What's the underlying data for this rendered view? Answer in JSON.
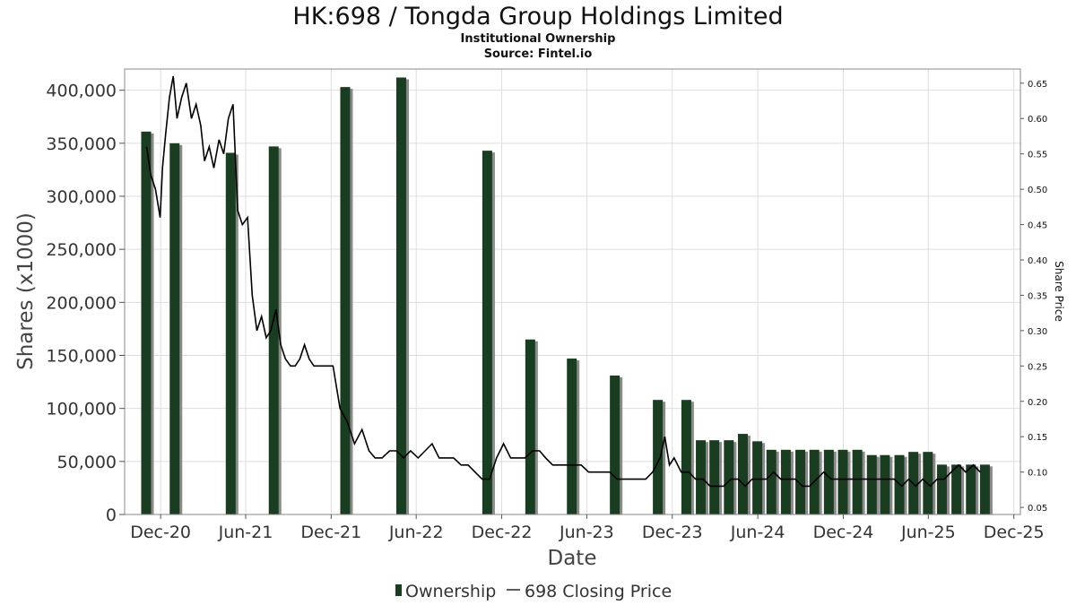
{
  "chart_data": {
    "type": "bar+line",
    "title": "HK:698 / Tongda Group Holdings Limited",
    "subtitle": "Institutional Ownership",
    "source": "Source: Fintel.io",
    "xlabel": "Date",
    "ylabel": "Shares (x1000)",
    "y2label": "Share Price",
    "ylim": [
      0,
      420000
    ],
    "y2lim": [
      0.04,
      0.67
    ],
    "yticks": [
      0,
      50000,
      100000,
      150000,
      200000,
      250000,
      300000,
      350000,
      400000
    ],
    "ytick_labels": [
      "0",
      "50,000",
      "100,000",
      "150,000",
      "200,000",
      "250,000",
      "300,000",
      "350,000",
      "400,000"
    ],
    "y2ticks": [
      0.05,
      0.1,
      0.15,
      0.2,
      0.25,
      0.3,
      0.35,
      0.4,
      0.45,
      0.5,
      0.55,
      0.6,
      0.65
    ],
    "y2tick_labels": [
      "0.05",
      "0.10",
      "0.15",
      "0.20",
      "0.25",
      "0.30",
      "0.35",
      "0.40",
      "0.45",
      "0.50",
      "0.55",
      "0.60",
      "0.65"
    ],
    "xlim": [
      "2020-09-15",
      "2025-12-15"
    ],
    "xticks": [
      "2020-12-01",
      "2021-06-01",
      "2021-12-01",
      "2022-06-01",
      "2022-12-01",
      "2023-06-01",
      "2023-12-01",
      "2024-06-01",
      "2024-12-01",
      "2025-06-01",
      "2025-12-01"
    ],
    "xtick_labels": [
      "Dec-20",
      "Jun-21",
      "Dec-21",
      "Jun-22",
      "Dec-22",
      "Jun-23",
      "Dec-23",
      "Jun-24",
      "Dec-24",
      "Jun-25",
      "Dec-25"
    ],
    "grid": true,
    "legend": "bottom-center",
    "series": [
      {
        "name": "Ownership",
        "type": "bar",
        "color": "#1a3d22",
        "x": [
          "2020-10-31",
          "2020-12-31",
          "2021-04-30",
          "2021-07-31",
          "2021-12-31",
          "2022-04-30",
          "2022-10-31",
          "2023-01-31",
          "2023-04-30",
          "2023-07-31",
          "2023-10-31",
          "2023-12-31",
          "2024-01-31",
          "2024-02-29",
          "2024-03-31",
          "2024-04-30",
          "2024-05-31",
          "2024-06-30",
          "2024-07-31",
          "2024-08-31",
          "2024-09-30",
          "2024-10-31",
          "2024-11-30",
          "2024-12-31",
          "2025-01-31",
          "2025-02-28",
          "2025-03-31",
          "2025-04-30",
          "2025-05-31",
          "2025-06-30",
          "2025-07-31",
          "2025-08-31",
          "2025-09-30"
        ],
        "values": [
          361000,
          350000,
          341000,
          347000,
          403000,
          412000,
          343000,
          165000,
          147000,
          131000,
          108000,
          108000,
          70000,
          70000,
          70000,
          76000,
          69000,
          61000,
          61000,
          61000,
          61000,
          61000,
          61000,
          61000,
          56000,
          56000,
          56000,
          59000,
          59000,
          47000,
          47000,
          47000,
          47000
        ]
      },
      {
        "name": "698 Closing Price",
        "type": "line",
        "color": "#000000",
        "x": [
          "2020-11-01",
          "2020-11-10",
          "2020-11-20",
          "2020-11-30",
          "2020-12-05",
          "2020-12-12",
          "2020-12-20",
          "2020-12-28",
          "2021-01-05",
          "2021-01-15",
          "2021-01-25",
          "2021-02-05",
          "2021-02-15",
          "2021-02-25",
          "2021-03-05",
          "2021-03-15",
          "2021-03-25",
          "2021-04-05",
          "2021-04-15",
          "2021-04-25",
          "2021-05-05",
          "2021-05-15",
          "2021-05-25",
          "2021-06-05",
          "2021-06-15",
          "2021-06-25",
          "2021-07-05",
          "2021-07-15",
          "2021-07-25",
          "2021-08-05",
          "2021-08-15",
          "2021-08-25",
          "2021-09-05",
          "2021-09-15",
          "2021-09-25",
          "2021-10-05",
          "2021-10-15",
          "2021-10-25",
          "2021-11-05",
          "2021-11-15",
          "2021-11-25",
          "2021-12-05",
          "2021-12-20",
          "2022-01-05",
          "2022-01-20",
          "2022-02-05",
          "2022-02-20",
          "2022-03-05",
          "2022-03-20",
          "2022-04-05",
          "2022-04-20",
          "2022-05-05",
          "2022-05-20",
          "2022-06-05",
          "2022-06-20",
          "2022-07-05",
          "2022-07-20",
          "2022-08-05",
          "2022-08-20",
          "2022-09-05",
          "2022-09-20",
          "2022-10-05",
          "2022-10-20",
          "2022-11-05",
          "2022-11-20",
          "2022-12-05",
          "2022-12-20",
          "2023-01-05",
          "2023-01-20",
          "2023-02-05",
          "2023-02-20",
          "2023-03-05",
          "2023-03-20",
          "2023-04-05",
          "2023-04-20",
          "2023-05-05",
          "2023-05-20",
          "2023-06-05",
          "2023-06-20",
          "2023-07-05",
          "2023-07-20",
          "2023-08-05",
          "2023-08-20",
          "2023-09-05",
          "2023-09-20",
          "2023-10-05",
          "2023-10-20",
          "2023-11-05",
          "2023-11-15",
          "2023-11-25",
          "2023-12-05",
          "2023-12-20",
          "2024-01-05",
          "2024-01-20",
          "2024-02-05",
          "2024-02-20",
          "2024-03-05",
          "2024-03-20",
          "2024-04-05",
          "2024-04-20",
          "2024-05-05",
          "2024-05-20",
          "2024-06-05",
          "2024-06-20",
          "2024-07-05",
          "2024-07-20",
          "2024-08-05",
          "2024-08-20",
          "2024-09-05",
          "2024-09-20",
          "2024-10-05",
          "2024-10-20",
          "2024-11-05",
          "2024-11-20",
          "2024-12-05",
          "2024-12-20",
          "2025-01-05",
          "2025-01-20",
          "2025-02-05",
          "2025-02-20",
          "2025-03-05",
          "2025-03-20",
          "2025-04-05",
          "2025-04-20",
          "2025-05-05",
          "2025-05-20",
          "2025-06-05",
          "2025-06-20",
          "2025-07-05",
          "2025-07-20",
          "2025-08-05",
          "2025-08-20",
          "2025-09-05",
          "2025-09-20"
        ],
        "values": [
          0.56,
          0.52,
          0.5,
          0.46,
          0.53,
          0.58,
          0.63,
          0.66,
          0.6,
          0.63,
          0.65,
          0.6,
          0.62,
          0.59,
          0.54,
          0.56,
          0.53,
          0.57,
          0.55,
          0.6,
          0.62,
          0.47,
          0.45,
          0.46,
          0.35,
          0.3,
          0.32,
          0.29,
          0.3,
          0.33,
          0.28,
          0.26,
          0.25,
          0.25,
          0.26,
          0.28,
          0.26,
          0.25,
          0.25,
          0.25,
          0.25,
          0.25,
          0.19,
          0.17,
          0.14,
          0.16,
          0.13,
          0.12,
          0.12,
          0.13,
          0.13,
          0.12,
          0.13,
          0.12,
          0.13,
          0.14,
          0.12,
          0.12,
          0.12,
          0.11,
          0.11,
          0.1,
          0.09,
          0.09,
          0.12,
          0.14,
          0.12,
          0.12,
          0.12,
          0.13,
          0.13,
          0.12,
          0.11,
          0.11,
          0.11,
          0.11,
          0.11,
          0.1,
          0.1,
          0.1,
          0.1,
          0.09,
          0.09,
          0.09,
          0.09,
          0.09,
          0.1,
          0.12,
          0.15,
          0.11,
          0.12,
          0.1,
          0.1,
          0.09,
          0.09,
          0.08,
          0.08,
          0.08,
          0.09,
          0.09,
          0.08,
          0.09,
          0.09,
          0.09,
          0.1,
          0.09,
          0.09,
          0.09,
          0.08,
          0.08,
          0.09,
          0.1,
          0.09,
          0.09,
          0.09,
          0.09,
          0.09,
          0.09,
          0.09,
          0.09,
          0.09,
          0.09,
          0.08,
          0.09,
          0.08,
          0.09,
          0.08,
          0.09,
          0.09,
          0.1,
          0.11,
          0.1,
          0.11,
          0.1
        ]
      }
    ]
  }
}
